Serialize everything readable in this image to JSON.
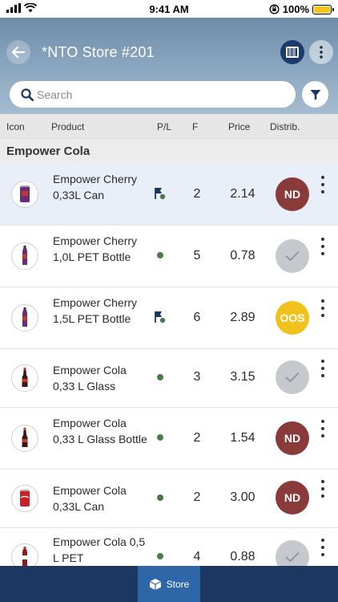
{
  "status_bar": {
    "time": "9:41 AM",
    "battery": "100%"
  },
  "header": {
    "title": "*NTO Store #201"
  },
  "search": {
    "placeholder": "Search"
  },
  "columns": {
    "icon": "Icon",
    "product": "Product",
    "pl": "P/L",
    "f": "F",
    "price": "Price",
    "distrib": "Distrib."
  },
  "group": {
    "title": "Empower Cola"
  },
  "rows": [
    {
      "name": "Empower Cherry 0,33L Can",
      "f": "2",
      "price": "2.14",
      "status": "ND",
      "pl": "flag"
    },
    {
      "name": "Empower Cherry 1,0L PET Bottle",
      "f": "5",
      "price": "0.78",
      "status": "check",
      "pl": "dot"
    },
    {
      "name": "Empower Cherry 1,5L PET Bottle",
      "f": "6",
      "price": "2.89",
      "status": "OOS",
      "pl": "flag"
    },
    {
      "name": "Empower Cola 0,33 L Glass",
      "f": "3",
      "price": "3.15",
      "status": "check",
      "pl": "dot"
    },
    {
      "name": "Empower Cola 0,33 L Glass Bottle",
      "f": "2",
      "price": "1.54",
      "status": "ND",
      "pl": "dot"
    },
    {
      "name": "Empower Cola 0,33L Can",
      "f": "2",
      "price": "3.00",
      "status": "ND",
      "pl": "dot"
    },
    {
      "name": "Empower Cola 0,5 L PET",
      "f": "4",
      "price": "0.88",
      "status": "check",
      "pl": "dot"
    }
  ],
  "bottom_nav": {
    "store_label": "Store"
  },
  "colors": {
    "header_top": "#6d8ba9",
    "nd_badge": "#8b3a3a",
    "oos_badge": "#f2c21c",
    "ok_badge": "#c5c8cc",
    "bottom_bar": "#1d3763",
    "active_tab": "#2f66a8"
  }
}
